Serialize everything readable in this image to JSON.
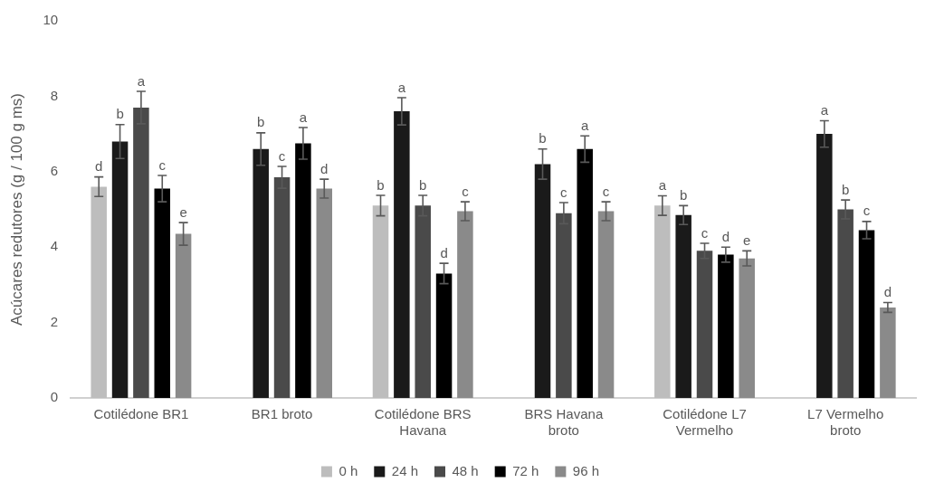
{
  "chart_data": {
    "type": "bar",
    "ylabel": "Acúcares redutores (g / 100 g ms)",
    "categories": [
      "Cotilédone BR1",
      "BR1 broto",
      "Cotilédone BRS Havana",
      "BRS Havana broto",
      "Cotilédone L7 Vermelho",
      "L7 Vermelho broto"
    ],
    "series": [
      {
        "name": "0 h",
        "color": "#bdbdbd",
        "values": [
          5.6,
          null,
          5.1,
          null,
          5.1,
          null
        ],
        "errors": [
          0.26,
          null,
          0.27,
          null,
          0.26,
          null
        ],
        "value_labels": [
          "d",
          null,
          "b",
          null,
          "a",
          null
        ]
      },
      {
        "name": "24 h",
        "color": "#1a1a1a",
        "values": [
          6.8,
          6.6,
          7.6,
          6.2,
          4.85,
          7.0
        ],
        "errors": [
          0.45,
          0.43,
          0.36,
          0.4,
          0.25,
          0.35
        ],
        "value_labels": [
          "b",
          "b",
          "a",
          "b",
          "b",
          "a"
        ]
      },
      {
        "name": "48 h",
        "color": "#4a4a4a",
        "values": [
          7.7,
          5.85,
          5.1,
          4.9,
          3.9,
          5.0
        ],
        "errors": [
          0.43,
          0.29,
          0.27,
          0.28,
          0.2,
          0.25
        ],
        "value_labels": [
          "a",
          "c",
          "b",
          "c",
          "c",
          "b"
        ]
      },
      {
        "name": "72 h",
        "color": "#000000",
        "values": [
          5.55,
          6.75,
          3.3,
          6.6,
          3.8,
          4.45
        ],
        "errors": [
          0.35,
          0.42,
          0.27,
          0.35,
          0.2,
          0.23
        ],
        "value_labels": [
          "c",
          "a",
          "d",
          "a",
          "d",
          "c"
        ]
      },
      {
        "name": "96 h",
        "color": "#8a8a8a",
        "values": [
          4.35,
          5.55,
          4.95,
          4.95,
          3.7,
          2.4
        ],
        "errors": [
          0.3,
          0.25,
          0.25,
          0.25,
          0.2,
          0.13
        ],
        "value_labels": [
          "e",
          "d",
          "c",
          "c",
          "e",
          "d"
        ]
      }
    ],
    "ylim": [
      0,
      10
    ],
    "yticks": [
      0,
      2,
      4,
      6,
      8,
      10
    ],
    "grid": false,
    "legend": "bottom"
  }
}
